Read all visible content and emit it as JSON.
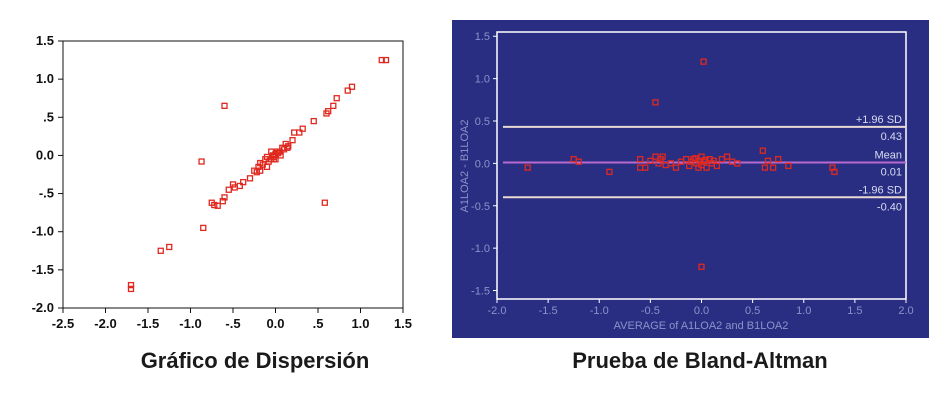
{
  "captions": {
    "left": "Gráfico de Dispersión",
    "right": "Prueba de Bland-Altman"
  },
  "colors": {
    "marker": "#e0281f",
    "left_background": "#ffffff",
    "right_background": "#2a2e82",
    "right_frame": "#ffffff",
    "limit_line": "#e9d9d4",
    "mean_line": "#b86ad0"
  },
  "chart_data": [
    {
      "type": "scatter",
      "title": "",
      "xlabel": "",
      "ylabel": "",
      "xlim": [
        -2.5,
        1.5
      ],
      "ylim": [
        -2.0,
        1.5
      ],
      "grid": false,
      "x_ticks": [
        -2.5,
        -2.0,
        -1.5,
        -1.0,
        -0.5,
        0.0,
        0.5,
        1.0,
        1.5
      ],
      "x_tick_labels": [
        "-2.5",
        "-2.0",
        "-1.5",
        "-1.0",
        "-.5",
        "0.0",
        ".5",
        "1.0",
        "1.5"
      ],
      "y_ticks": [
        1.5,
        1.0,
        0.5,
        0.0,
        -0.5,
        -1.0,
        -1.5,
        -2.0
      ],
      "y_tick_labels": [
        "1.5",
        "1.0",
        ".5",
        "0.0",
        "-.5",
        "-1.0",
        "-1.5",
        "-2.0"
      ],
      "points": [
        {
          "x": -1.7,
          "y": -1.75
        },
        {
          "x": -1.7,
          "y": -1.7
        },
        {
          "x": -1.35,
          "y": -1.25
        },
        {
          "x": -1.25,
          "y": -1.2
        },
        {
          "x": -0.85,
          "y": -0.95
        },
        {
          "x": -0.75,
          "y": -0.62
        },
        {
          "x": -0.72,
          "y": -0.65
        },
        {
          "x": -0.68,
          "y": -0.66
        },
        {
          "x": -0.62,
          "y": -0.6
        },
        {
          "x": -0.6,
          "y": -0.55
        },
        {
          "x": -0.55,
          "y": -0.45
        },
        {
          "x": -0.5,
          "y": -0.38
        },
        {
          "x": -0.48,
          "y": -0.42
        },
        {
          "x": -0.42,
          "y": -0.4
        },
        {
          "x": -0.38,
          "y": -0.35
        },
        {
          "x": -0.3,
          "y": -0.3
        },
        {
          "x": -0.25,
          "y": -0.2
        },
        {
          "x": -0.22,
          "y": -0.22
        },
        {
          "x": -0.2,
          "y": -0.15
        },
        {
          "x": -0.18,
          "y": -0.1
        },
        {
          "x": -0.15,
          "y": -0.12
        },
        {
          "x": -0.12,
          "y": -0.05
        },
        {
          "x": -0.1,
          "y": -0.15
        },
        {
          "x": -0.08,
          "y": -0.08
        },
        {
          "x": -0.05,
          "y": -0.05
        },
        {
          "x": -0.03,
          "y": 0.0
        },
        {
          "x": -0.02,
          "y": -0.02
        },
        {
          "x": 0.0,
          "y": 0.02
        },
        {
          "x": 0.0,
          "y": -0.05
        },
        {
          "x": 0.02,
          "y": 0.05
        },
        {
          "x": 0.05,
          "y": 0.05
        },
        {
          "x": 0.08,
          "y": 0.1
        },
        {
          "x": 0.1,
          "y": 0.08
        },
        {
          "x": 0.12,
          "y": 0.15
        },
        {
          "x": 0.15,
          "y": 0.12
        },
        {
          "x": 0.2,
          "y": 0.2
        },
        {
          "x": 0.22,
          "y": 0.3
        },
        {
          "x": 0.28,
          "y": 0.3
        },
        {
          "x": 0.32,
          "y": 0.35
        },
        {
          "x": 0.45,
          "y": 0.45
        },
        {
          "x": 0.6,
          "y": 0.55
        },
        {
          "x": 0.62,
          "y": 0.58
        },
        {
          "x": 0.68,
          "y": 0.65
        },
        {
          "x": 0.72,
          "y": 0.75
        },
        {
          "x": 0.85,
          "y": 0.85
        },
        {
          "x": 0.9,
          "y": 0.9
        },
        {
          "x": 1.25,
          "y": 1.25
        },
        {
          "x": 1.3,
          "y": 1.25
        },
        {
          "x": -0.87,
          "y": -0.08
        },
        {
          "x": -0.6,
          "y": 0.65
        },
        {
          "x": 0.58,
          "y": -0.62
        },
        {
          "x": -0.05,
          "y": 0.05
        },
        {
          "x": 0.0,
          "y": 0.0
        },
        {
          "x": -0.02,
          "y": -0.05
        },
        {
          "x": 0.03,
          "y": 0.03
        },
        {
          "x": 0.06,
          "y": 0.0
        },
        {
          "x": -0.1,
          "y": -0.02
        },
        {
          "x": -0.18,
          "y": -0.2
        },
        {
          "x": 0.14,
          "y": 0.1
        }
      ]
    },
    {
      "type": "scatter",
      "title": "",
      "xlabel": "AVERAGE of A1LOA2 and B1LOA2",
      "ylabel": "A1LOA2 - B1LOA2",
      "xlim": [
        -2.0,
        2.0
      ],
      "ylim": [
        -1.6,
        1.55
      ],
      "grid": false,
      "x_ticks": [
        -2.0,
        -1.5,
        -1.0,
        -0.5,
        0.0,
        0.5,
        1.0,
        1.5,
        2.0
      ],
      "x_tick_labels": [
        "-2.0",
        "-1.5",
        "-1.0",
        "-0.5",
        "0.0",
        "0.5",
        "1.0",
        "1.5",
        "2.0"
      ],
      "y_ticks": [
        1.5,
        1.0,
        0.5,
        0.0,
        -0.5,
        -1.0,
        -1.5
      ],
      "y_tick_labels": [
        "1.5",
        "1.0",
        "0.5",
        "0.0",
        "-0.5",
        "-1.0",
        "-1.5"
      ],
      "reference_lines": [
        {
          "name": "+1.96 SD",
          "value": 0.43,
          "value_label": "0.43",
          "kind": "limit"
        },
        {
          "name": "Mean",
          "value": 0.01,
          "value_label": "0.01",
          "kind": "mean"
        },
        {
          "name": "-1.96 SD",
          "value": -0.4,
          "value_label": "-0.40",
          "kind": "limit"
        }
      ],
      "points": [
        {
          "x": -1.7,
          "y": -0.05
        },
        {
          "x": -1.25,
          "y": 0.05
        },
        {
          "x": -1.2,
          "y": 0.02
        },
        {
          "x": -0.9,
          "y": -0.1
        },
        {
          "x": -0.6,
          "y": 0.05
        },
        {
          "x": -0.55,
          "y": -0.05
        },
        {
          "x": -0.5,
          "y": 0.03
        },
        {
          "x": -0.45,
          "y": 0.08
        },
        {
          "x": -0.42,
          "y": 0.0
        },
        {
          "x": -0.4,
          "y": 0.05
        },
        {
          "x": -0.38,
          "y": 0.08
        },
        {
          "x": -0.35,
          "y": -0.02
        },
        {
          "x": -0.3,
          "y": 0.0
        },
        {
          "x": -0.25,
          "y": -0.05
        },
        {
          "x": -0.2,
          "y": 0.02
        },
        {
          "x": -0.15,
          "y": 0.05
        },
        {
          "x": -0.12,
          "y": -0.03
        },
        {
          "x": -0.1,
          "y": 0.02
        },
        {
          "x": -0.08,
          "y": 0.05
        },
        {
          "x": -0.05,
          "y": 0.0
        },
        {
          "x": -0.03,
          "y": -0.05
        },
        {
          "x": -0.02,
          "y": 0.03
        },
        {
          "x": 0.0,
          "y": 0.08
        },
        {
          "x": 0.0,
          "y": -0.02
        },
        {
          "x": 0.02,
          "y": 0.02
        },
        {
          "x": 0.05,
          "y": -0.05
        },
        {
          "x": 0.08,
          "y": 0.05
        },
        {
          "x": 0.1,
          "y": 0.0
        },
        {
          "x": 0.12,
          "y": 0.03
        },
        {
          "x": 0.15,
          "y": -0.03
        },
        {
          "x": 0.2,
          "y": 0.05
        },
        {
          "x": 0.25,
          "y": 0.08
        },
        {
          "x": 0.3,
          "y": 0.02
        },
        {
          "x": 0.35,
          "y": 0.0
        },
        {
          "x": 0.6,
          "y": 0.15
        },
        {
          "x": 0.62,
          "y": -0.05
        },
        {
          "x": 0.65,
          "y": 0.03
        },
        {
          "x": 0.7,
          "y": -0.05
        },
        {
          "x": 0.75,
          "y": 0.05
        },
        {
          "x": 0.85,
          "y": -0.03
        },
        {
          "x": 1.3,
          "y": -0.1
        },
        {
          "x": 1.28,
          "y": -0.05
        },
        {
          "x": -0.45,
          "y": 0.72
        },
        {
          "x": 0.02,
          "y": 1.2
        },
        {
          "x": 0.0,
          "y": -1.22
        },
        {
          "x": -0.6,
          "y": -0.05
        },
        {
          "x": -0.06,
          "y": 0.06
        },
        {
          "x": 0.04,
          "y": 0.04
        }
      ]
    }
  ]
}
